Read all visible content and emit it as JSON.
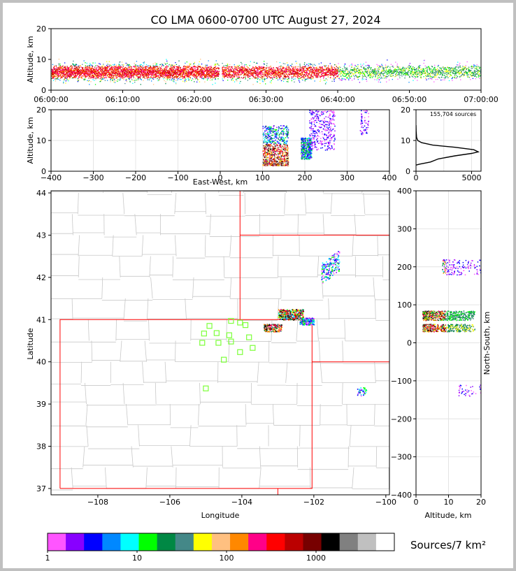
{
  "title": "CO LMA 0600-0700 UTC August 27, 2024",
  "colors": {
    "map_lines": "#c8c8c8",
    "state_lines": "#ff0000",
    "stations": "#7dff3a",
    "axis": "#000000",
    "altitude_profile": "#000000"
  },
  "chart_data": [
    {
      "name": "time-height",
      "type": "heatmap",
      "xlabel": "",
      "ylabel": "Altitude, km",
      "ylim": [
        0,
        20
      ],
      "yticks": [
        "0",
        "10",
        "20"
      ],
      "xticks": [
        "06:00:00",
        "06:10:00",
        "06:20:00",
        "06:30:00",
        "06:40:00",
        "06:50:00",
        "07:00:00"
      ],
      "xlim_minutes": [
        0,
        60
      ],
      "data_gap_minutes": [
        23.4,
        23.8
      ]
    },
    {
      "name": "east-west-height",
      "type": "heatmap",
      "xlabel": "East-West, km",
      "ylabel": "Altitude, km",
      "xlim": [
        -400,
        400
      ],
      "ylim": [
        0,
        20
      ],
      "xticks": [
        "−400",
        "−300",
        "−200",
        "−100",
        "0",
        "100",
        "200",
        "300",
        "400"
      ],
      "yticks": [
        "0",
        "10",
        "20"
      ],
      "clusters_km": [
        {
          "x": [
            100,
            160
          ],
          "z": [
            2,
            15
          ]
        },
        {
          "x": [
            190,
            215
          ],
          "z": [
            4,
            11
          ]
        },
        {
          "x": [
            210,
            270
          ],
          "z": [
            7,
            20
          ]
        },
        {
          "x": [
            330,
            350
          ],
          "z": [
            12,
            20
          ]
        }
      ]
    },
    {
      "name": "altitude-histogram",
      "type": "line",
      "annotation": "155,704 sources",
      "xticks": [
        "0",
        "5000"
      ],
      "yticks": [
        "0",
        "10",
        "20"
      ],
      "xlim": [
        0,
        5600
      ],
      "ylim": [
        0,
        20
      ],
      "profile": [
        [
          0,
          2
        ],
        [
          300,
          2.3
        ],
        [
          1300,
          3
        ],
        [
          2000,
          4
        ],
        [
          3500,
          5
        ],
        [
          5000,
          5.8
        ],
        [
          5600,
          6.3
        ],
        [
          5200,
          7
        ],
        [
          3500,
          7.8
        ],
        [
          1500,
          8.5
        ],
        [
          500,
          9.3
        ],
        [
          150,
          10
        ],
        [
          50,
          11
        ],
        [
          10,
          13
        ],
        [
          0,
          15
        ]
      ]
    },
    {
      "name": "plan-view",
      "type": "scatter",
      "xlabel": "Longitude",
      "ylabel": "Latitude",
      "xlim": [
        -109.3,
        -99.9
      ],
      "ylim": [
        36.85,
        44.05
      ],
      "xticks": [
        "−108",
        "−106",
        "−104",
        "−102",
        "−100"
      ],
      "yticks": [
        "37",
        "38",
        "39",
        "40",
        "41",
        "42",
        "43",
        "44"
      ],
      "stations": [
        [
          -104.9,
          40.85
        ],
        [
          -104.3,
          40.97
        ],
        [
          -104.05,
          40.93
        ],
        [
          -103.9,
          40.87
        ],
        [
          -105.05,
          40.67
        ],
        [
          -104.7,
          40.68
        ],
        [
          -104.35,
          40.63
        ],
        [
          -103.8,
          40.58
        ],
        [
          -105.1,
          40.45
        ],
        [
          -104.65,
          40.45
        ],
        [
          -104.3,
          40.48
        ],
        [
          -103.7,
          40.33
        ],
        [
          -104.05,
          40.23
        ],
        [
          -104.5,
          40.05
        ],
        [
          -105.0,
          39.37
        ]
      ],
      "clusters_lonlat": [
        {
          "lon": [
            -101.8,
            -101.3
          ],
          "lat": [
            42.0,
            42.5
          ]
        },
        {
          "lon": [
            -103.0,
            -102.3
          ],
          "lat": [
            41.0,
            41.25
          ]
        },
        {
          "lon": [
            -103.4,
            -102.9
          ],
          "lat": [
            40.72,
            40.9
          ]
        },
        {
          "lon": [
            -102.4,
            -102.0
          ],
          "lat": [
            40.88,
            41.05
          ]
        },
        {
          "lon": [
            -100.8,
            -100.55
          ],
          "lat": [
            39.2,
            39.4
          ]
        }
      ]
    },
    {
      "name": "north-south-height",
      "type": "heatmap",
      "xlabel": "Altitude, km",
      "ylabel": "North-South, km",
      "xlim": [
        0,
        20
      ],
      "ylim": [
        -400,
        400
      ],
      "xticks": [
        "0",
        "10",
        "20"
      ],
      "yticks": [
        "−400",
        "−300",
        "−200",
        "−100",
        "0",
        "100",
        "200",
        "300",
        "400"
      ]
    },
    {
      "name": "colorbar",
      "type": "table",
      "label": "Sources/7 km²",
      "ticks": [
        "1",
        "10",
        "100",
        "1000"
      ],
      "colors": [
        "#ff55ff",
        "#8800ff",
        "#0000ff",
        "#0088ff",
        "#00ffff",
        "#00ff00",
        "#008844",
        "#448888",
        "#ffff00",
        "#ffc080",
        "#ff8800",
        "#ff0088",
        "#ff0000",
        "#bb0000",
        "#770000",
        "#000000",
        "#808080",
        "#c0c0c0",
        "#ffffff"
      ]
    }
  ]
}
